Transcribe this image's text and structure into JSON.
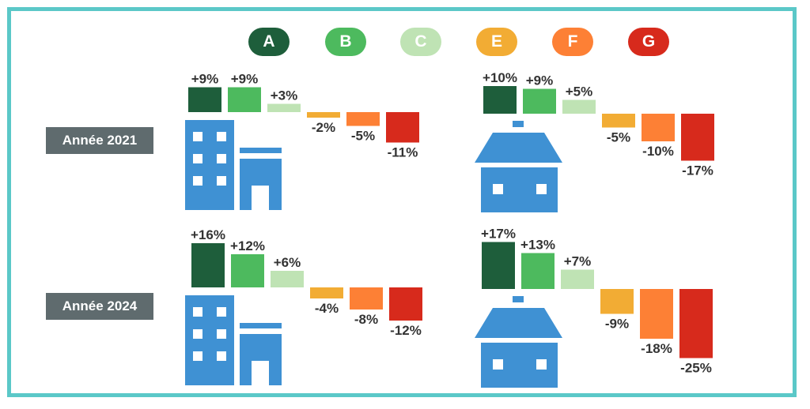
{
  "legend": [
    {
      "label": "A",
      "color": "#1e5e3b"
    },
    {
      "label": "B",
      "color": "#4dba5e"
    },
    {
      "label": "C",
      "color": "#bfe3b4"
    },
    {
      "label": "E",
      "color": "#f2ac34"
    },
    {
      "label": "F",
      "color": "#fd8035"
    },
    {
      "label": "G",
      "color": "#d72a1c"
    }
  ],
  "rows": [
    {
      "label": "Année 2021"
    },
    {
      "label": "Année 2024"
    }
  ],
  "chart_data": {
    "type": "bar",
    "categories": [
      "A",
      "B",
      "C",
      "E",
      "F",
      "G"
    ],
    "unit": "%",
    "panels": [
      {
        "year": "Année 2021",
        "building": "apartment-building",
        "values": [
          9,
          9,
          3,
          -2,
          -5,
          -11
        ],
        "labels": [
          "+9%",
          "+9%",
          "+3%",
          "-2%",
          "-5%",
          "-11%"
        ]
      },
      {
        "year": "Année 2021",
        "building": "house",
        "values": [
          10,
          9,
          5,
          -5,
          -10,
          -17
        ],
        "labels": [
          "+10%",
          "+9%",
          "+5%",
          "-5%",
          "-10%",
          "-17%"
        ]
      },
      {
        "year": "Année 2024",
        "building": "apartment-building",
        "values": [
          16,
          12,
          6,
          -4,
          -8,
          -12
        ],
        "labels": [
          "+16%",
          "+12%",
          "+6%",
          "-4%",
          "-8%",
          "-12%"
        ]
      },
      {
        "year": "Année 2024",
        "building": "house",
        "values": [
          17,
          13,
          7,
          -9,
          -18,
          -25
        ],
        "labels": [
          "+17%",
          "+13%",
          "+7%",
          "-9%",
          "-18%",
          "-25%"
        ]
      }
    ]
  }
}
